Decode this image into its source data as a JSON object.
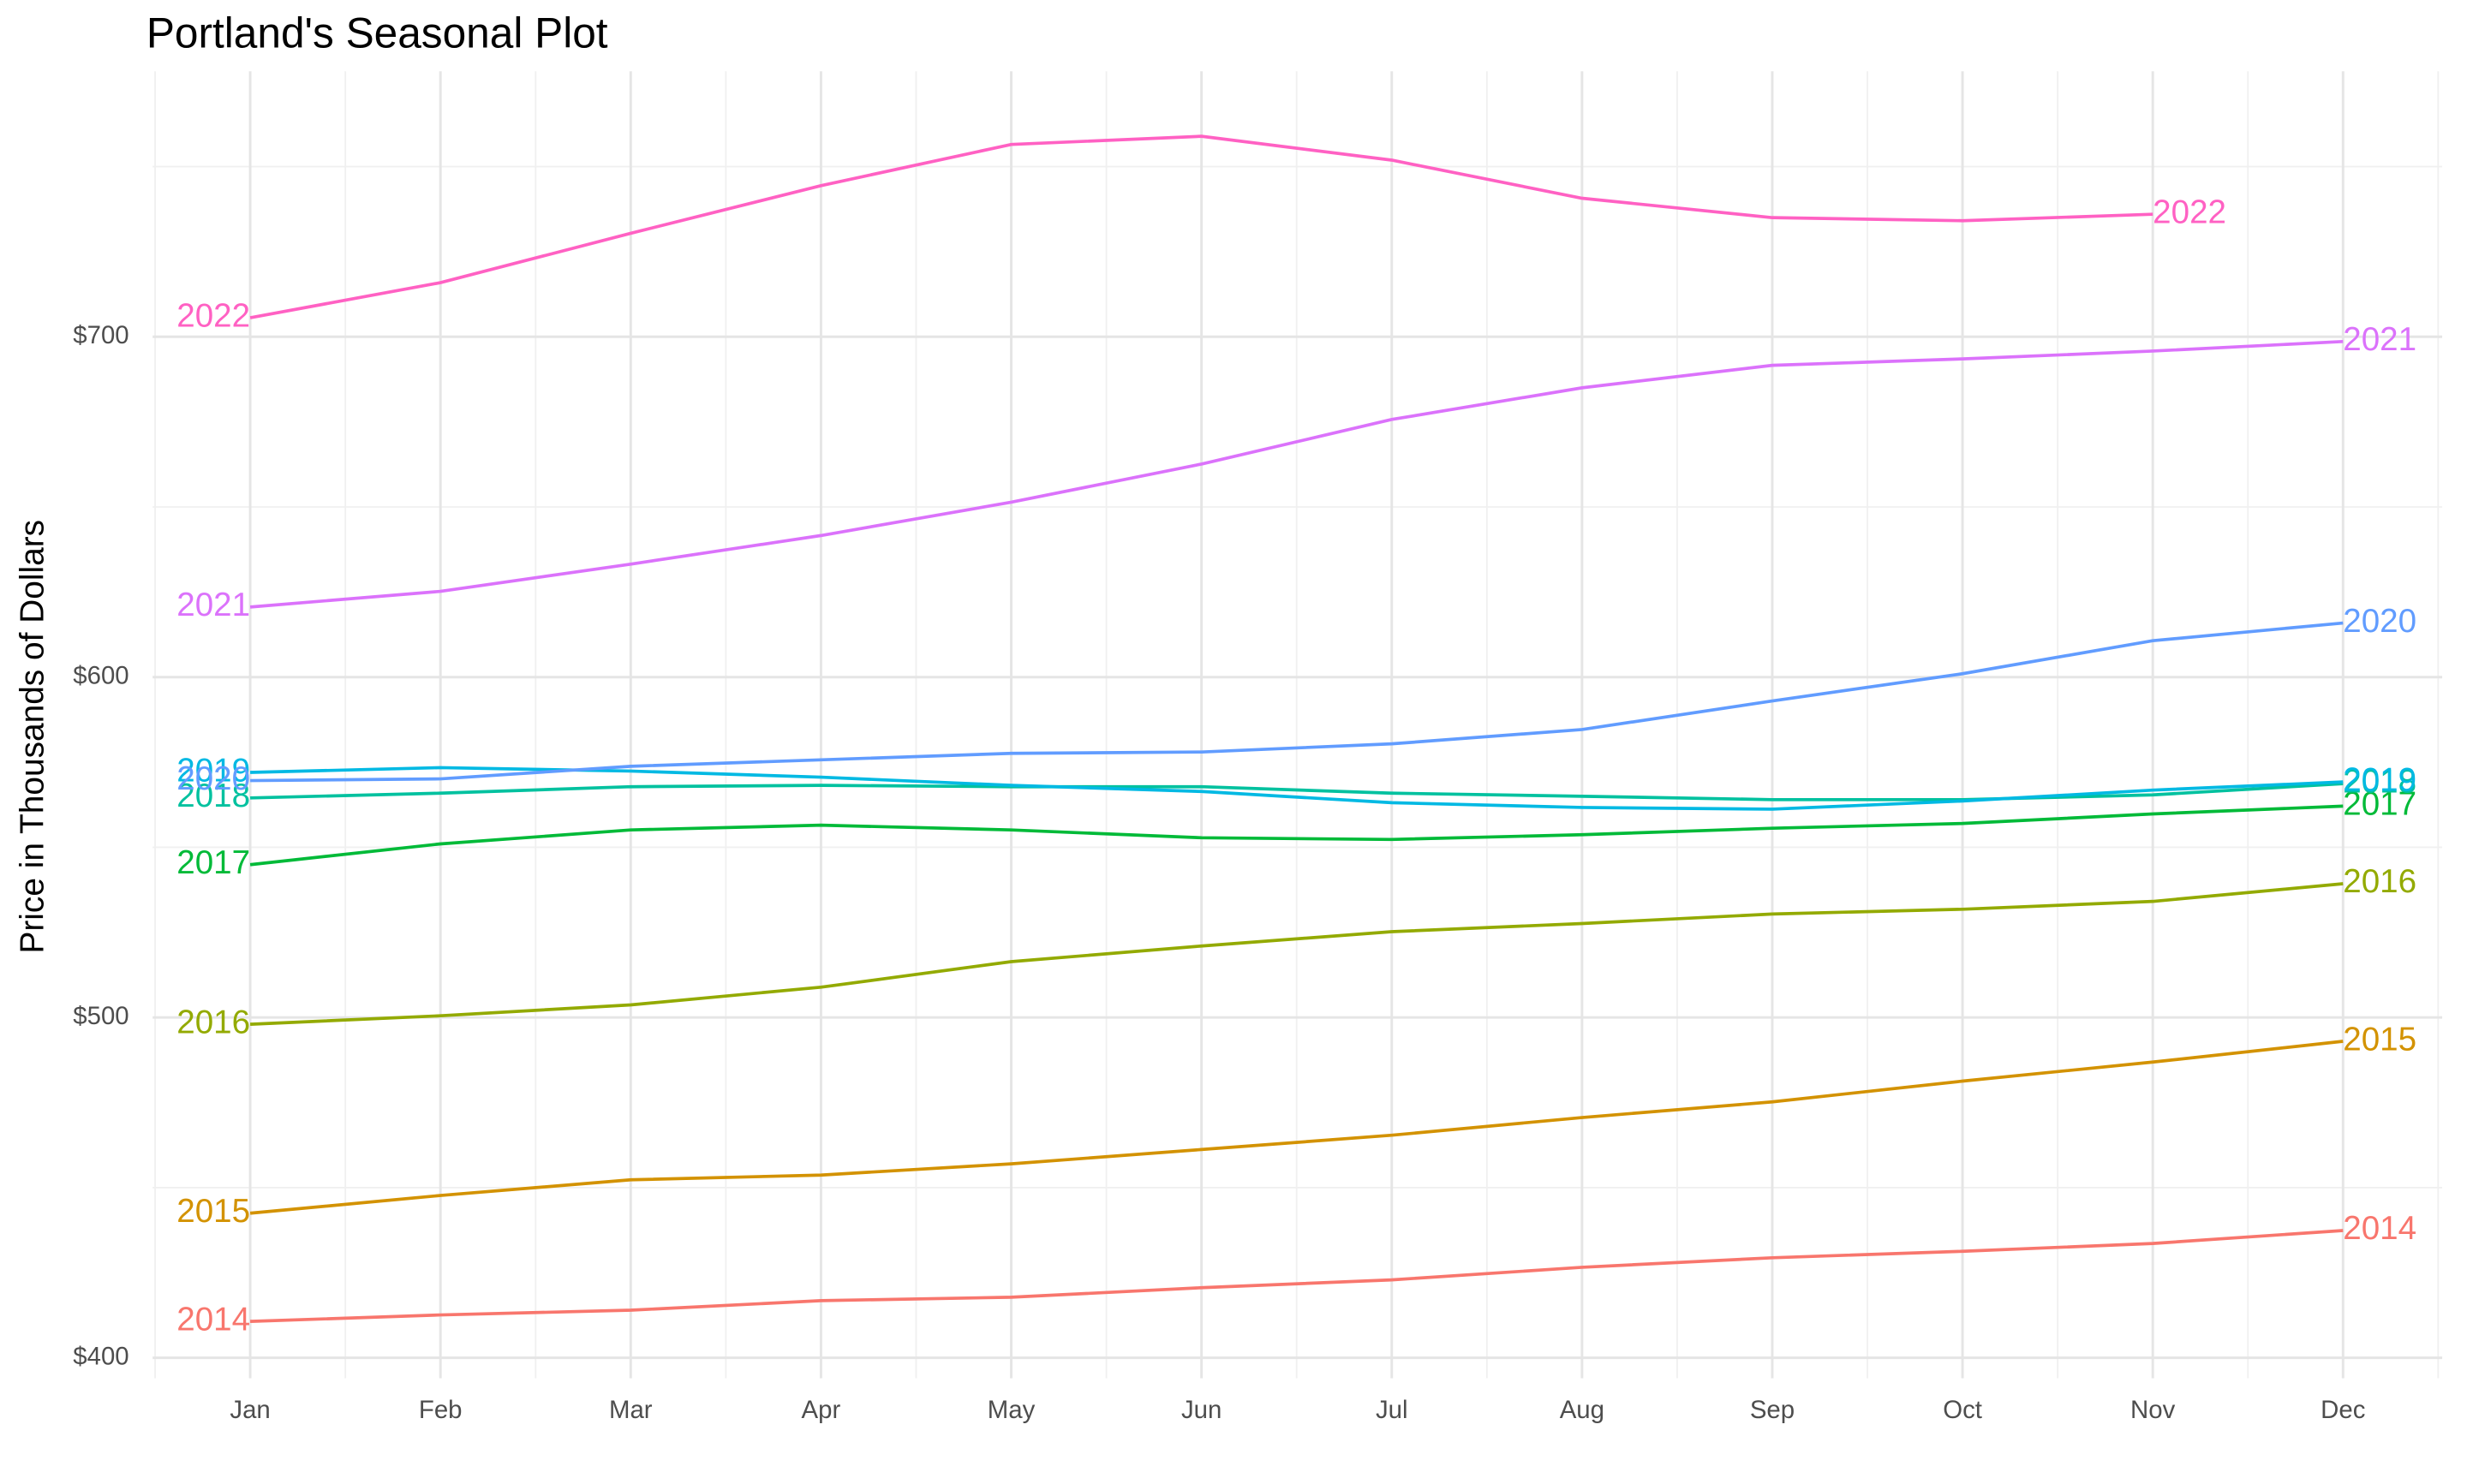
{
  "chart_data": {
    "type": "line",
    "title": "Portland's Seasonal Plot",
    "y_label": "Price in Thousands of Dollars",
    "categories": [
      "Jan",
      "Feb",
      "Mar",
      "Apr",
      "May",
      "Jun",
      "Jul",
      "Aug",
      "Sep",
      "Oct",
      "Nov",
      "Dec"
    ],
    "ylim": [
      394,
      778
    ],
    "yticks": [
      {
        "value": 400,
        "label": "$400"
      },
      {
        "value": 500,
        "label": "$500"
      },
      {
        "value": 600,
        "label": "$600"
      },
      {
        "value": 700,
        "label": "$700"
      }
    ],
    "grid": true,
    "series": [
      {
        "name": "2014",
        "color": "#F8766D",
        "values": [
          410.7,
          412.6,
          414,
          416.8,
          417.8,
          420.6,
          422.9,
          426.6,
          429.4,
          431.3,
          433.6,
          437.4
        ]
      },
      {
        "name": "2015",
        "color": "#D39200",
        "values": [
          442.5,
          447.7,
          452.3,
          453.7,
          457,
          461.2,
          465.4,
          470.6,
          475.2,
          481.3,
          486.9,
          493
        ]
      },
      {
        "name": "2016",
        "color": "#93AA00",
        "values": [
          498,
          500.5,
          503.7,
          508.9,
          516.4,
          521,
          525.2,
          527.6,
          530.4,
          531.8,
          534.1,
          539.3
        ]
      },
      {
        "name": "2017",
        "color": "#00BA38",
        "values": [
          544.9,
          551,
          555.1,
          556.5,
          555.1,
          552.8,
          552.3,
          553.7,
          555.6,
          557,
          559.8,
          562.1
        ]
      },
      {
        "name": "2018",
        "color": "#00C19F",
        "values": [
          564.5,
          565.9,
          567.8,
          568.2,
          567.8,
          567.8,
          565.9,
          565,
          564,
          564,
          565.4,
          568.7
        ]
      },
      {
        "name": "2019",
        "color": "#00B9E3",
        "values": [
          572,
          573.4,
          572.4,
          570.6,
          568.2,
          566.4,
          563.1,
          561.7,
          561.2,
          563.6,
          566.8,
          569.2
        ]
      },
      {
        "name": "2020",
        "color": "#619CFF",
        "values": [
          569.6,
          570.1,
          573.8,
          575.7,
          577.6,
          578,
          580.4,
          584.6,
          593,
          601,
          610.7,
          615.9
        ]
      },
      {
        "name": "2021",
        "color": "#DB72FB",
        "values": [
          620.6,
          625.2,
          633.2,
          641.6,
          651.4,
          662.6,
          675.7,
          685,
          691.6,
          693.5,
          695.8,
          698.6
        ]
      },
      {
        "name": "2022",
        "color": "#FF61C3",
        "values": [
          705.6,
          715.9,
          730.4,
          744.4,
          756.5,
          758.9,
          751.9,
          740.7,
          735,
          734.1,
          736,
          null
        ]
      }
    ]
  }
}
